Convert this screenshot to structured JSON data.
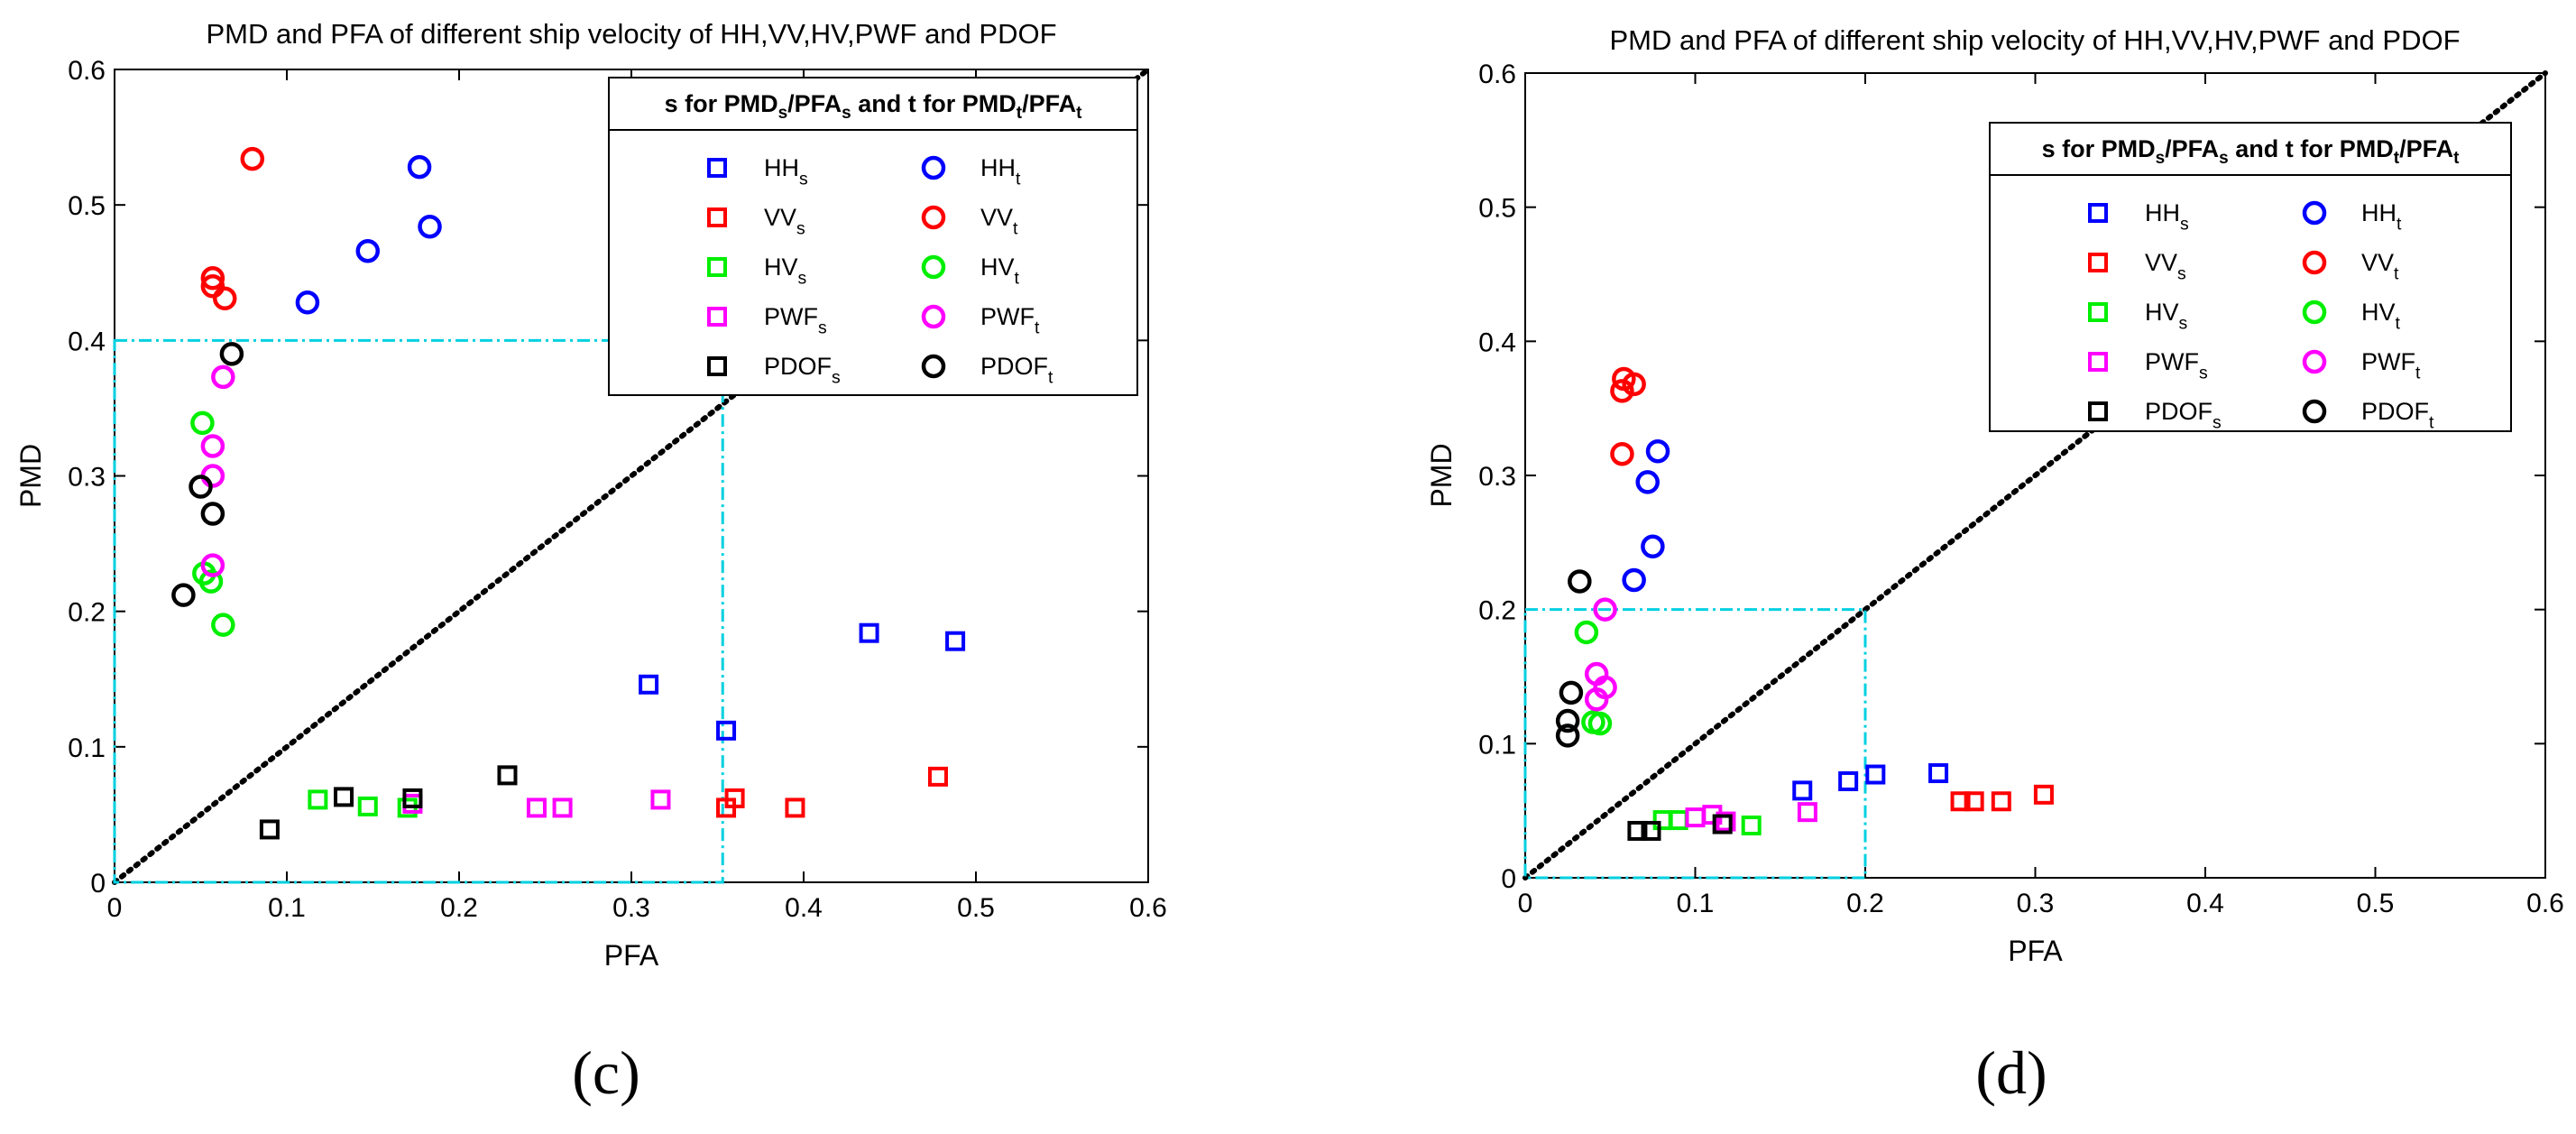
{
  "figure": {
    "panel_labels": [
      "(c)",
      "(d)"
    ]
  },
  "chart_data": [
    {
      "type": "scatter",
      "panel_label": "(c)",
      "title": "PMD and PFA of different ship velocity of HH,VV,HV,PWF and PDOF",
      "xlabel": "PFA",
      "ylabel": "PMD",
      "xlim": [
        0,
        0.6
      ],
      "ylim": [
        0,
        0.6
      ],
      "xticks": [
        "0",
        "0.1",
        "0.2",
        "0.3",
        "0.4",
        "0.5",
        "0.6"
      ],
      "yticks": [
        "0",
        "0.1",
        "0.2",
        "0.3",
        "0.4",
        "0.5",
        "0.6"
      ],
      "grid": false,
      "legend_title": "s for PMDs/PFAs and t for PMDt/PFAt",
      "legend_placement": "top-right",
      "diagonal_reference": true,
      "highlight_box": {
        "x": [
          0,
          0.353
        ],
        "y": [
          0,
          0.4
        ],
        "color": "#00d0e0"
      },
      "series": [
        {
          "name": "HHs",
          "marker": "square",
          "color": "#0000ff",
          "points": [
            [
              0.31,
              0.146
            ],
            [
              0.355,
              0.112
            ],
            [
              0.438,
              0.184
            ],
            [
              0.488,
              0.178
            ]
          ]
        },
        {
          "name": "VVs",
          "marker": "square",
          "color": "#ff0000",
          "points": [
            [
              0.355,
              0.055
            ],
            [
              0.36,
              0.062
            ],
            [
              0.395,
              0.055
            ],
            [
              0.478,
              0.078
            ]
          ]
        },
        {
          "name": "HVs",
          "marker": "square",
          "color": "#00ee00",
          "points": [
            [
              0.118,
              0.061
            ],
            [
              0.147,
              0.056
            ],
            [
              0.17,
              0.055
            ]
          ]
        },
        {
          "name": "PWFs",
          "marker": "square",
          "color": "#ff00ff",
          "points": [
            [
              0.173,
              0.058
            ],
            [
              0.245,
              0.055
            ],
            [
              0.26,
              0.055
            ],
            [
              0.317,
              0.061
            ]
          ]
        },
        {
          "name": "PDOFs",
          "marker": "square",
          "color": "#000000",
          "points": [
            [
              0.09,
              0.039
            ],
            [
              0.133,
              0.063
            ],
            [
              0.173,
              0.062
            ],
            [
              0.228,
              0.079
            ]
          ]
        },
        {
          "name": "HHt",
          "marker": "circle",
          "color": "#0000ff",
          "points": [
            [
              0.112,
              0.428
            ],
            [
              0.147,
              0.466
            ],
            [
              0.177,
              0.528
            ],
            [
              0.183,
              0.484
            ]
          ]
        },
        {
          "name": "VVt",
          "marker": "circle",
          "color": "#ff0000",
          "points": [
            [
              0.08,
              0.534
            ],
            [
              0.057,
              0.446
            ],
            [
              0.057,
              0.44
            ],
            [
              0.064,
              0.431
            ]
          ]
        },
        {
          "name": "HVt",
          "marker": "circle",
          "color": "#00ee00",
          "points": [
            [
              0.051,
              0.339
            ],
            [
              0.052,
              0.228
            ],
            [
              0.056,
              0.222
            ],
            [
              0.063,
              0.19
            ]
          ]
        },
        {
          "name": "PWFt",
          "marker": "circle",
          "color": "#ff00ff",
          "points": [
            [
              0.063,
              0.373
            ],
            [
              0.057,
              0.322
            ],
            [
              0.057,
              0.3
            ],
            [
              0.057,
              0.234
            ]
          ]
        },
        {
          "name": "PDOFt",
          "marker": "circle",
          "color": "#000000",
          "points": [
            [
              0.068,
              0.39
            ],
            [
              0.05,
              0.292
            ],
            [
              0.057,
              0.272
            ],
            [
              0.04,
              0.212
            ]
          ]
        }
      ]
    },
    {
      "type": "scatter",
      "panel_label": "(d)",
      "title": "PMD and PFA of different ship velocity of HH,VV,HV,PWF and PDOF",
      "xlabel": "PFA",
      "ylabel": "PMD",
      "xlim": [
        0,
        0.6
      ],
      "ylim": [
        0,
        0.6
      ],
      "xticks": [
        "0",
        "0.1",
        "0.2",
        "0.3",
        "0.4",
        "0.5",
        "0.6"
      ],
      "yticks": [
        "0",
        "0.1",
        "0.2",
        "0.3",
        "0.4",
        "0.5",
        "0.6"
      ],
      "grid": false,
      "legend_title": "s for PMDs/PFAs and t for PMDt/PFAt",
      "legend_placement": "top-right",
      "diagonal_reference": true,
      "highlight_box": {
        "x": [
          0,
          0.2
        ],
        "y": [
          0,
          0.2
        ],
        "color": "#00d0e0"
      },
      "series": [
        {
          "name": "HHs",
          "marker": "square",
          "color": "#0000ff",
          "points": [
            [
              0.163,
              0.065
            ],
            [
              0.19,
              0.072
            ],
            [
              0.206,
              0.077
            ],
            [
              0.243,
              0.078
            ]
          ]
        },
        {
          "name": "VVs",
          "marker": "square",
          "color": "#ff0000",
          "points": [
            [
              0.256,
              0.057
            ],
            [
              0.264,
              0.057
            ],
            [
              0.28,
              0.057
            ],
            [
              0.305,
              0.062
            ]
          ]
        },
        {
          "name": "HVs",
          "marker": "square",
          "color": "#00ee00",
          "points": [
            [
              0.081,
              0.043
            ],
            [
              0.09,
              0.043
            ],
            [
              0.133,
              0.039
            ]
          ]
        },
        {
          "name": "PWFs",
          "marker": "square",
          "color": "#ff00ff",
          "points": [
            [
              0.1,
              0.045
            ],
            [
              0.11,
              0.047
            ],
            [
              0.118,
              0.042
            ],
            [
              0.166,
              0.049
            ]
          ]
        },
        {
          "name": "PDOFs",
          "marker": "square",
          "color": "#000000",
          "points": [
            [
              0.066,
              0.035
            ],
            [
              0.074,
              0.035
            ],
            [
              0.116,
              0.04
            ]
          ]
        },
        {
          "name": "HHt",
          "marker": "circle",
          "color": "#0000ff",
          "points": [
            [
              0.078,
              0.318
            ],
            [
              0.072,
              0.295
            ],
            [
              0.075,
              0.247
            ],
            [
              0.064,
              0.222
            ]
          ]
        },
        {
          "name": "VVt",
          "marker": "circle",
          "color": "#ff0000",
          "points": [
            [
              0.058,
              0.372
            ],
            [
              0.064,
              0.368
            ],
            [
              0.057,
              0.363
            ],
            [
              0.057,
              0.316
            ]
          ]
        },
        {
          "name": "HVt",
          "marker": "circle",
          "color": "#00ee00",
          "points": [
            [
              0.036,
              0.183
            ],
            [
              0.04,
              0.116
            ],
            [
              0.044,
              0.115
            ]
          ]
        },
        {
          "name": "PWFt",
          "marker": "circle",
          "color": "#ff00ff",
          "points": [
            [
              0.047,
              0.2
            ],
            [
              0.042,
              0.152
            ],
            [
              0.047,
              0.142
            ],
            [
              0.042,
              0.133
            ]
          ]
        },
        {
          "name": "PDOFt",
          "marker": "circle",
          "color": "#000000",
          "points": [
            [
              0.032,
              0.221
            ],
            [
              0.027,
              0.138
            ],
            [
              0.025,
              0.117
            ],
            [
              0.025,
              0.106
            ]
          ]
        }
      ]
    }
  ]
}
